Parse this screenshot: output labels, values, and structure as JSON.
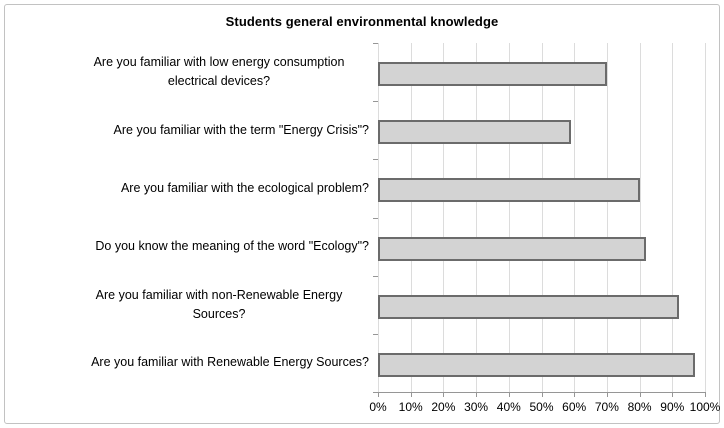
{
  "figure": {
    "title": "Students general environmental knowledge"
  },
  "chart_data": {
    "type": "bar",
    "orientation": "horizontal",
    "title": "Students general environmental knowledge",
    "categories": [
      "Are you familiar with low energy consumption electrical devices?",
      "Are you familiar with the term \"Energy Crisis\"?",
      "Are you familiar with the ecological problem?",
      "Do you know the meaning of the word \"Ecology\"?",
      "Are you familiar with non-Renewable Energy Sources?",
      "Are you familiar with Renewable Energy Sources?"
    ],
    "values": [
      70,
      59,
      80,
      82,
      92,
      97
    ],
    "unit": "%",
    "xlabel": "",
    "ylabel": "",
    "xlim": [
      0,
      100
    ],
    "x_tick_labels": [
      "0%",
      "10%",
      "20%",
      "30%",
      "40%",
      "50%",
      "60%",
      "70%",
      "80%",
      "90%",
      "100%"
    ],
    "grid": "vertical",
    "legend": "none",
    "colors": {
      "bar_fill": "#d3d3d3",
      "bar_border": "#6b6b6b",
      "gridline": "#dcdcdc",
      "axis_line": "#969696",
      "text": "#000000",
      "frame_border": "#c2c2c2"
    }
  }
}
